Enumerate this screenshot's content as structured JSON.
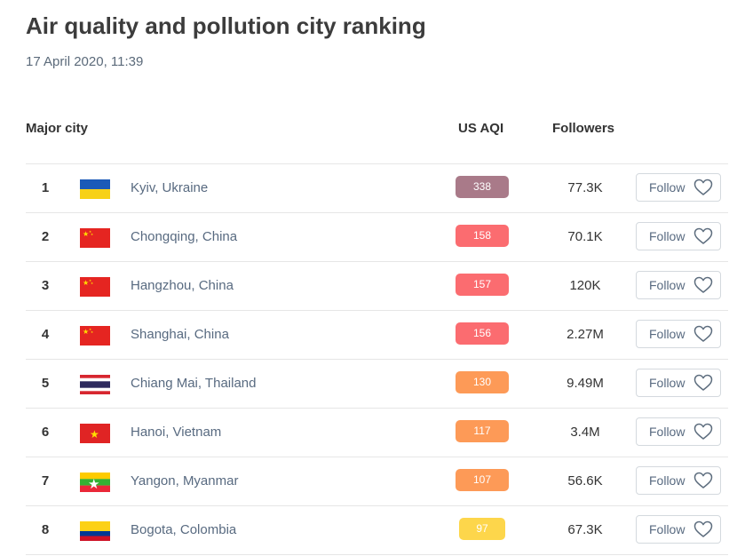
{
  "title": "Air quality and pollution city ranking",
  "date": "17 April 2020, 11:39",
  "headers": {
    "city": "Major city",
    "aqi": "US AQI",
    "followers": "Followers"
  },
  "follow_label": "Follow",
  "rows": [
    {
      "rank": "1",
      "flag": "ukraine-flag-icon",
      "city": "Kyiv, Ukraine",
      "aqi": "338",
      "aqi_color": "#a97a89",
      "followers": "77.3K"
    },
    {
      "rank": "2",
      "flag": "china-flag-icon",
      "city": "Chongqing, China",
      "aqi": "158",
      "aqi_color": "#fb6c70",
      "followers": "70.1K"
    },
    {
      "rank": "3",
      "flag": "china-flag-icon",
      "city": "Hangzhou, China",
      "aqi": "157",
      "aqi_color": "#fb6c70",
      "followers": "120K"
    },
    {
      "rank": "4",
      "flag": "china-flag-icon",
      "city": "Shanghai, China",
      "aqi": "156",
      "aqi_color": "#fb6c70",
      "followers": "2.27M"
    },
    {
      "rank": "5",
      "flag": "thailand-flag-icon",
      "city": "Chiang Mai, Thailand",
      "aqi": "130",
      "aqi_color": "#fd9a57",
      "followers": "9.49M"
    },
    {
      "rank": "6",
      "flag": "vietnam-flag-icon",
      "city": "Hanoi, Vietnam",
      "aqi": "117",
      "aqi_color": "#fd9a57",
      "followers": "3.4M"
    },
    {
      "rank": "7",
      "flag": "myanmar-flag-icon",
      "city": "Yangon, Myanmar",
      "aqi": "107",
      "aqi_color": "#fd9a57",
      "followers": "56.6K"
    },
    {
      "rank": "8",
      "flag": "colombia-flag-icon",
      "city": "Bogota, Colombia",
      "aqi": "97",
      "aqi_color": "#fdd64b",
      "followers": "67.3K"
    }
  ]
}
